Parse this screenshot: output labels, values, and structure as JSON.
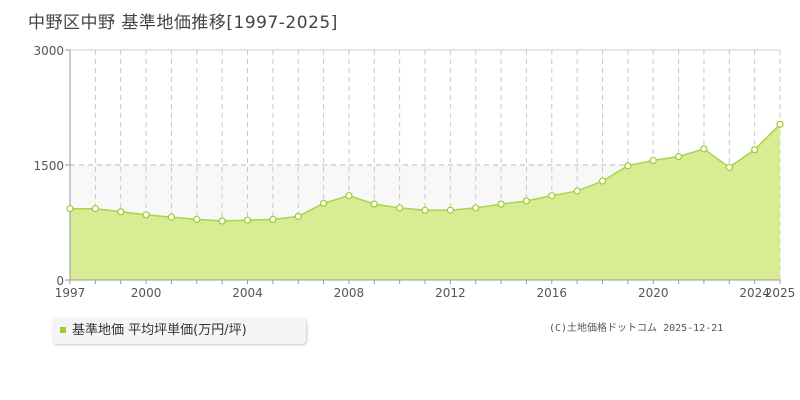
{
  "chart_data": {
    "type": "area",
    "title": "中野区中野 基準地価推移[1997-2025]",
    "x": [
      1997,
      1998,
      1999,
      2000,
      2001,
      2002,
      2003,
      2004,
      2005,
      2006,
      2007,
      2008,
      2009,
      2010,
      2011,
      2012,
      2013,
      2014,
      2015,
      2016,
      2017,
      2018,
      2019,
      2020,
      2021,
      2022,
      2023,
      2024,
      2025
    ],
    "series": [
      {
        "name": "基準地価 平均坪単価(万円/坪)",
        "values": [
          930,
          930,
          890,
          850,
          820,
          790,
          770,
          780,
          790,
          830,
          1000,
          1100,
          990,
          940,
          910,
          910,
          940,
          990,
          1030,
          1100,
          1160,
          1290,
          1490,
          1560,
          1610,
          1710,
          1470,
          1700,
          2030
        ]
      }
    ],
    "xticks": [
      "1997",
      "2000",
      "2004",
      "2008",
      "2012",
      "2016",
      "2020",
      "2024",
      "2025"
    ],
    "yticks": [
      "0",
      "1500",
      "3000"
    ],
    "ylim": [
      0,
      3000
    ],
    "xlim": [
      1997,
      2025
    ],
    "grid": true,
    "legend_position": "bottom-left",
    "colors": {
      "fill": "#d8ec94",
      "line": "#a8d44c",
      "marker": "#9acd32"
    }
  },
  "legend": {
    "label": "基準地価 平均坪単価(万円/坪)"
  },
  "copyright": "(C)土地価格ドットコム 2025-12-21"
}
